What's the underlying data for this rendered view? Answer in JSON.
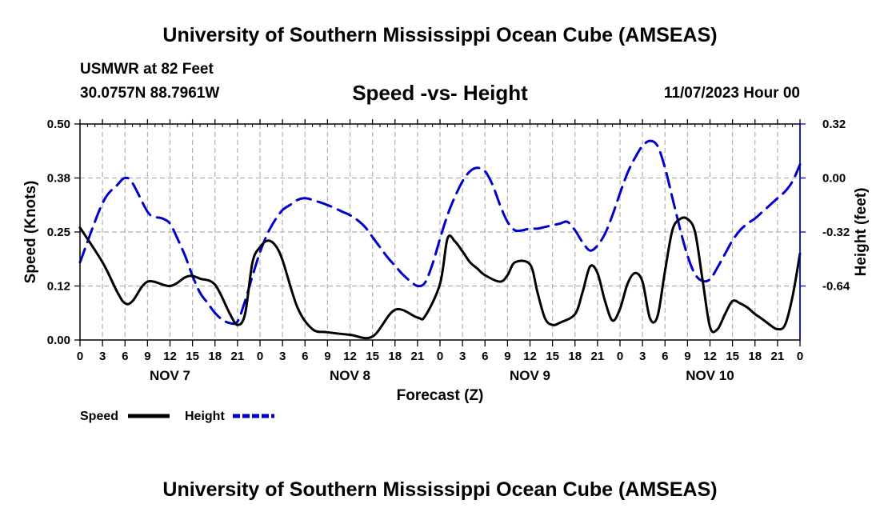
{
  "header": {
    "title": "University of Southern Mississippi Ocean Cube (AMSEAS)",
    "station": "USMWR at 82 Feet",
    "coords": "30.0757N  88.7961W",
    "date": "11/07/2023 Hour 00",
    "footer_title": "University of Southern Mississippi Ocean Cube (AMSEAS)"
  },
  "chart_data": {
    "type": "line",
    "title": "Speed -vs- Height",
    "xlabel": "Forecast (Z)",
    "ylabel": "Speed (Knots)",
    "y2label": "Height (feet)",
    "xlim": [
      0,
      96
    ],
    "ylim": [
      0,
      0.5
    ],
    "y2lim": [
      -0.96,
      0.32
    ],
    "x_ticks": [
      0,
      3,
      6,
      9,
      12,
      15,
      18,
      21,
      24,
      27,
      30,
      33,
      36,
      39,
      42,
      45,
      48,
      51,
      54,
      57,
      60,
      63,
      66,
      69,
      72,
      75,
      78,
      81,
      84,
      87,
      90,
      93,
      96
    ],
    "x_tick_labels": [
      "0",
      "3",
      "6",
      "9",
      "12",
      "15",
      "18",
      "21",
      "0",
      "3",
      "6",
      "9",
      "12",
      "15",
      "18",
      "21",
      "0",
      "3",
      "6",
      "9",
      "12",
      "15",
      "18",
      "21",
      "0",
      "3",
      "6",
      "9",
      "12",
      "15",
      "18",
      "21",
      "0"
    ],
    "day_labels": [
      {
        "label": "NOV 7",
        "x": 12
      },
      {
        "label": "NOV 8",
        "x": 36
      },
      {
        "label": "NOV 9",
        "x": 60
      },
      {
        "label": "NOV 10",
        "x": 84
      }
    ],
    "y_ticks": [
      0.0,
      0.125,
      0.25,
      0.375,
      0.5
    ],
    "y_tick_labels": [
      "0.00",
      "0.12",
      "0.25",
      "0.38",
      "0.50"
    ],
    "y2_ticks": [
      -0.64,
      -0.32,
      0.0,
      0.32
    ],
    "y2_tick_labels": [
      "-0.64",
      "-0.32",
      "0.00",
      "0.32"
    ],
    "grid": true,
    "legend": [
      {
        "name": "Speed",
        "color": "#000000",
        "dash": "solid"
      },
      {
        "name": "Height",
        "color": "#0000cc",
        "dash": "dashed"
      }
    ],
    "series": [
      {
        "name": "Speed",
        "axis": "left",
        "color": "#000000",
        "x": [
          0,
          3,
          5,
          6,
          7,
          9,
          12,
          14,
          15,
          16,
          18,
          20,
          21,
          22,
          23,
          24,
          25,
          26,
          27,
          29,
          31,
          33,
          36,
          39,
          42,
          45,
          46,
          48,
          49,
          50,
          51,
          52,
          53,
          54,
          56,
          57,
          58,
          60,
          61,
          62,
          63,
          64,
          66,
          67,
          68,
          69,
          70,
          71,
          72,
          73,
          74,
          75,
          76,
          77,
          78,
          79,
          80,
          81,
          82,
          83,
          84,
          85,
          86,
          87,
          88,
          89,
          90,
          91,
          92,
          93,
          94,
          95,
          96
        ],
        "y": [
          0.26,
          0.18,
          0.11,
          0.085,
          0.09,
          0.135,
          0.125,
          0.145,
          0.148,
          0.142,
          0.128,
          0.06,
          0.035,
          0.06,
          0.18,
          0.215,
          0.23,
          0.22,
          0.185,
          0.075,
          0.025,
          0.018,
          0.012,
          0.008,
          0.07,
          0.052,
          0.055,
          0.13,
          0.235,
          0.228,
          0.205,
          0.18,
          0.165,
          0.15,
          0.135,
          0.15,
          0.18,
          0.175,
          0.11,
          0.05,
          0.035,
          0.04,
          0.06,
          0.11,
          0.17,
          0.155,
          0.09,
          0.045,
          0.072,
          0.13,
          0.155,
          0.135,
          0.05,
          0.055,
          0.16,
          0.255,
          0.28,
          0.28,
          0.25,
          0.14,
          0.03,
          0.025,
          0.06,
          0.09,
          0.085,
          0.075,
          0.06,
          0.048,
          0.035,
          0.025,
          0.035,
          0.1,
          0.2
        ]
      },
      {
        "name": "Height",
        "axis": "right",
        "color": "#0000cc",
        "x": [
          0,
          3,
          5,
          6,
          7,
          9,
          10,
          11,
          12,
          13,
          14,
          15,
          16,
          17,
          18,
          19,
          20,
          21,
          22,
          23,
          24,
          25,
          26,
          27,
          28,
          29,
          30,
          31,
          33,
          35,
          36,
          37,
          38,
          39,
          40,
          41,
          42,
          43,
          44,
          45,
          46,
          47,
          48,
          49,
          50,
          51,
          52,
          53,
          54,
          55,
          56,
          57,
          58,
          59,
          60,
          61,
          62,
          63,
          64,
          65,
          66,
          67,
          68,
          69,
          70,
          71,
          72,
          73,
          74,
          75,
          76,
          77,
          78,
          79,
          80,
          81,
          82,
          83,
          84,
          85,
          86,
          87,
          88,
          89,
          90,
          91,
          92,
          93,
          94,
          95,
          96
        ],
        "y": [
          -0.5,
          -0.15,
          -0.04,
          0.0,
          -0.03,
          -0.2,
          -0.23,
          -0.24,
          -0.27,
          -0.36,
          -0.46,
          -0.58,
          -0.68,
          -0.74,
          -0.8,
          -0.84,
          -0.86,
          -0.85,
          -0.73,
          -0.58,
          -0.44,
          -0.33,
          -0.25,
          -0.19,
          -0.16,
          -0.13,
          -0.12,
          -0.13,
          -0.16,
          -0.2,
          -0.22,
          -0.25,
          -0.29,
          -0.35,
          -0.41,
          -0.47,
          -0.52,
          -0.57,
          -0.61,
          -0.64,
          -0.62,
          -0.51,
          -0.36,
          -0.22,
          -0.11,
          -0.02,
          0.04,
          0.06,
          0.04,
          -0.04,
          -0.16,
          -0.26,
          -0.31,
          -0.31,
          -0.3,
          -0.3,
          -0.29,
          -0.28,
          -0.27,
          -0.26,
          -0.31,
          -0.38,
          -0.43,
          -0.4,
          -0.33,
          -0.22,
          -0.09,
          0.03,
          0.12,
          0.19,
          0.22,
          0.19,
          0.06,
          -0.12,
          -0.3,
          -0.46,
          -0.57,
          -0.61,
          -0.6,
          -0.53,
          -0.45,
          -0.37,
          -0.31,
          -0.27,
          -0.24,
          -0.2,
          -0.16,
          -0.12,
          -0.08,
          -0.02,
          0.08
        ]
      }
    ]
  }
}
